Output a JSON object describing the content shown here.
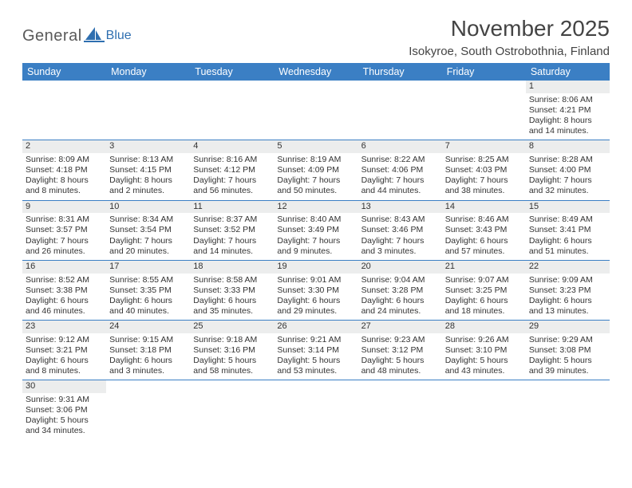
{
  "brand": {
    "general": "General",
    "blue": "Blue"
  },
  "title": "November 2025",
  "location": "Isokyroe, South Ostrobothnia, Finland",
  "colors": {
    "header_bar": "#3b7fc4",
    "daynum_bg": "#eceded",
    "week_border": "#3b7fc4",
    "text": "#333333",
    "logo_gray": "#5a5a5a",
    "logo_blue": "#2f6fb0"
  },
  "dow": [
    "Sunday",
    "Monday",
    "Tuesday",
    "Wednesday",
    "Thursday",
    "Friday",
    "Saturday"
  ],
  "weeks": [
    [
      null,
      null,
      null,
      null,
      null,
      null,
      {
        "n": "1",
        "sr": "Sunrise: 8:06 AM",
        "ss": "Sunset: 4:21 PM",
        "d1": "Daylight: 8 hours",
        "d2": "and 14 minutes."
      }
    ],
    [
      {
        "n": "2",
        "sr": "Sunrise: 8:09 AM",
        "ss": "Sunset: 4:18 PM",
        "d1": "Daylight: 8 hours",
        "d2": "and 8 minutes."
      },
      {
        "n": "3",
        "sr": "Sunrise: 8:13 AM",
        "ss": "Sunset: 4:15 PM",
        "d1": "Daylight: 8 hours",
        "d2": "and 2 minutes."
      },
      {
        "n": "4",
        "sr": "Sunrise: 8:16 AM",
        "ss": "Sunset: 4:12 PM",
        "d1": "Daylight: 7 hours",
        "d2": "and 56 minutes."
      },
      {
        "n": "5",
        "sr": "Sunrise: 8:19 AM",
        "ss": "Sunset: 4:09 PM",
        "d1": "Daylight: 7 hours",
        "d2": "and 50 minutes."
      },
      {
        "n": "6",
        "sr": "Sunrise: 8:22 AM",
        "ss": "Sunset: 4:06 PM",
        "d1": "Daylight: 7 hours",
        "d2": "and 44 minutes."
      },
      {
        "n": "7",
        "sr": "Sunrise: 8:25 AM",
        "ss": "Sunset: 4:03 PM",
        "d1": "Daylight: 7 hours",
        "d2": "and 38 minutes."
      },
      {
        "n": "8",
        "sr": "Sunrise: 8:28 AM",
        "ss": "Sunset: 4:00 PM",
        "d1": "Daylight: 7 hours",
        "d2": "and 32 minutes."
      }
    ],
    [
      {
        "n": "9",
        "sr": "Sunrise: 8:31 AM",
        "ss": "Sunset: 3:57 PM",
        "d1": "Daylight: 7 hours",
        "d2": "and 26 minutes."
      },
      {
        "n": "10",
        "sr": "Sunrise: 8:34 AM",
        "ss": "Sunset: 3:54 PM",
        "d1": "Daylight: 7 hours",
        "d2": "and 20 minutes."
      },
      {
        "n": "11",
        "sr": "Sunrise: 8:37 AM",
        "ss": "Sunset: 3:52 PM",
        "d1": "Daylight: 7 hours",
        "d2": "and 14 minutes."
      },
      {
        "n": "12",
        "sr": "Sunrise: 8:40 AM",
        "ss": "Sunset: 3:49 PM",
        "d1": "Daylight: 7 hours",
        "d2": "and 9 minutes."
      },
      {
        "n": "13",
        "sr": "Sunrise: 8:43 AM",
        "ss": "Sunset: 3:46 PM",
        "d1": "Daylight: 7 hours",
        "d2": "and 3 minutes."
      },
      {
        "n": "14",
        "sr": "Sunrise: 8:46 AM",
        "ss": "Sunset: 3:43 PM",
        "d1": "Daylight: 6 hours",
        "d2": "and 57 minutes."
      },
      {
        "n": "15",
        "sr": "Sunrise: 8:49 AM",
        "ss": "Sunset: 3:41 PM",
        "d1": "Daylight: 6 hours",
        "d2": "and 51 minutes."
      }
    ],
    [
      {
        "n": "16",
        "sr": "Sunrise: 8:52 AM",
        "ss": "Sunset: 3:38 PM",
        "d1": "Daylight: 6 hours",
        "d2": "and 46 minutes."
      },
      {
        "n": "17",
        "sr": "Sunrise: 8:55 AM",
        "ss": "Sunset: 3:35 PM",
        "d1": "Daylight: 6 hours",
        "d2": "and 40 minutes."
      },
      {
        "n": "18",
        "sr": "Sunrise: 8:58 AM",
        "ss": "Sunset: 3:33 PM",
        "d1": "Daylight: 6 hours",
        "d2": "and 35 minutes."
      },
      {
        "n": "19",
        "sr": "Sunrise: 9:01 AM",
        "ss": "Sunset: 3:30 PM",
        "d1": "Daylight: 6 hours",
        "d2": "and 29 minutes."
      },
      {
        "n": "20",
        "sr": "Sunrise: 9:04 AM",
        "ss": "Sunset: 3:28 PM",
        "d1": "Daylight: 6 hours",
        "d2": "and 24 minutes."
      },
      {
        "n": "21",
        "sr": "Sunrise: 9:07 AM",
        "ss": "Sunset: 3:25 PM",
        "d1": "Daylight: 6 hours",
        "d2": "and 18 minutes."
      },
      {
        "n": "22",
        "sr": "Sunrise: 9:09 AM",
        "ss": "Sunset: 3:23 PM",
        "d1": "Daylight: 6 hours",
        "d2": "and 13 minutes."
      }
    ],
    [
      {
        "n": "23",
        "sr": "Sunrise: 9:12 AM",
        "ss": "Sunset: 3:21 PM",
        "d1": "Daylight: 6 hours",
        "d2": "and 8 minutes."
      },
      {
        "n": "24",
        "sr": "Sunrise: 9:15 AM",
        "ss": "Sunset: 3:18 PM",
        "d1": "Daylight: 6 hours",
        "d2": "and 3 minutes."
      },
      {
        "n": "25",
        "sr": "Sunrise: 9:18 AM",
        "ss": "Sunset: 3:16 PM",
        "d1": "Daylight: 5 hours",
        "d2": "and 58 minutes."
      },
      {
        "n": "26",
        "sr": "Sunrise: 9:21 AM",
        "ss": "Sunset: 3:14 PM",
        "d1": "Daylight: 5 hours",
        "d2": "and 53 minutes."
      },
      {
        "n": "27",
        "sr": "Sunrise: 9:23 AM",
        "ss": "Sunset: 3:12 PM",
        "d1": "Daylight: 5 hours",
        "d2": "and 48 minutes."
      },
      {
        "n": "28",
        "sr": "Sunrise: 9:26 AM",
        "ss": "Sunset: 3:10 PM",
        "d1": "Daylight: 5 hours",
        "d2": "and 43 minutes."
      },
      {
        "n": "29",
        "sr": "Sunrise: 9:29 AM",
        "ss": "Sunset: 3:08 PM",
        "d1": "Daylight: 5 hours",
        "d2": "and 39 minutes."
      }
    ],
    [
      {
        "n": "30",
        "sr": "Sunrise: 9:31 AM",
        "ss": "Sunset: 3:06 PM",
        "d1": "Daylight: 5 hours",
        "d2": "and 34 minutes."
      },
      null,
      null,
      null,
      null,
      null,
      null
    ]
  ]
}
